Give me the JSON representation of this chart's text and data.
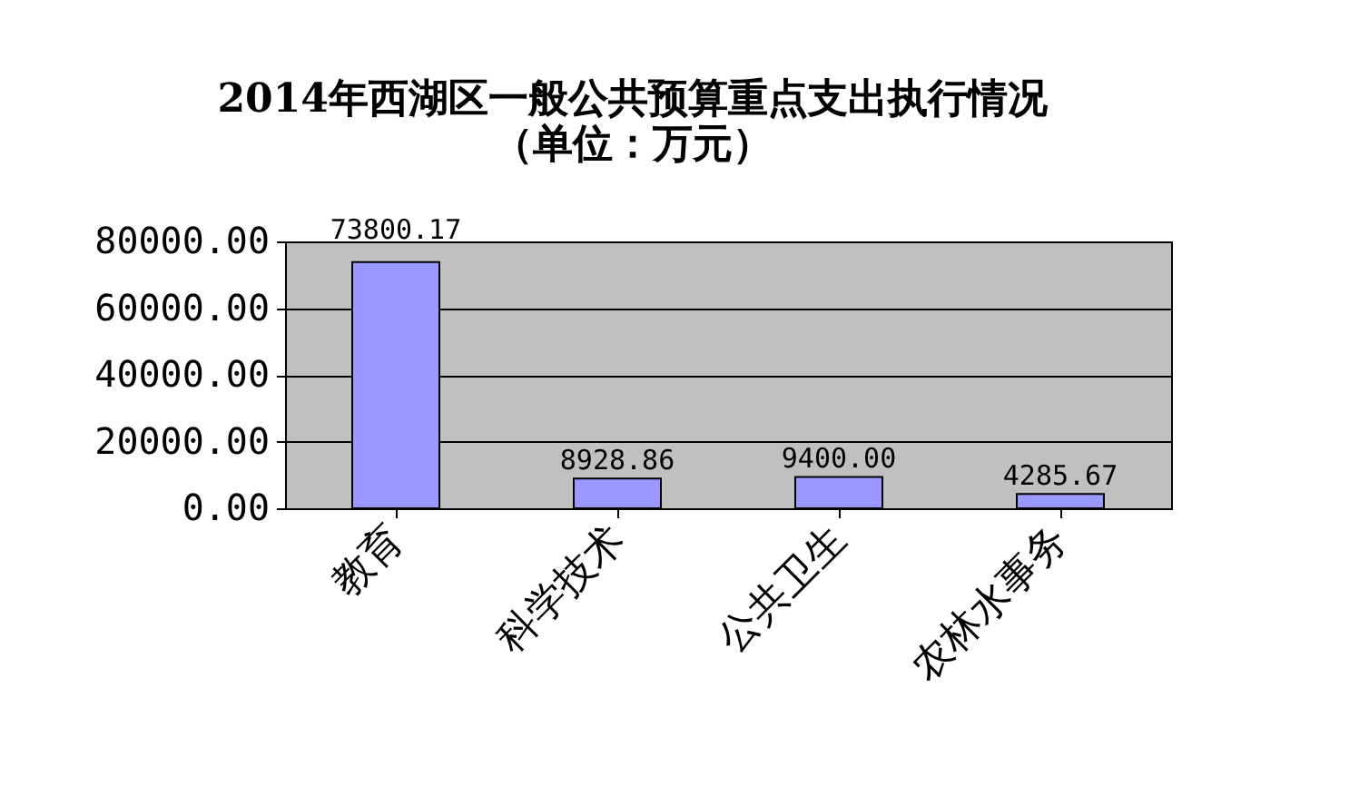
{
  "chart_data": {
    "type": "bar",
    "title": "2014年西湖区一般公共预算重点支出执行情况",
    "subtitle": "（单位：万元）",
    "categories": [
      "教育",
      "科学技术",
      "公共卫生",
      "农林水事务"
    ],
    "values": [
      73800.17,
      8928.86,
      9400.0,
      4285.67
    ],
    "value_labels": [
      "73800.17",
      "8928.86",
      "9400.00",
      "4285.67"
    ],
    "color": "#9999ff",
    "ylim": [
      0,
      80000
    ],
    "yticks": [
      {
        "value": 0,
        "label": "0.00"
      },
      {
        "value": 20000,
        "label": "20000.00"
      },
      {
        "value": 40000,
        "label": "40000.00"
      },
      {
        "value": 60000,
        "label": "60000.00"
      },
      {
        "value": 80000,
        "label": "80000.00"
      }
    ],
    "grid": "y"
  }
}
